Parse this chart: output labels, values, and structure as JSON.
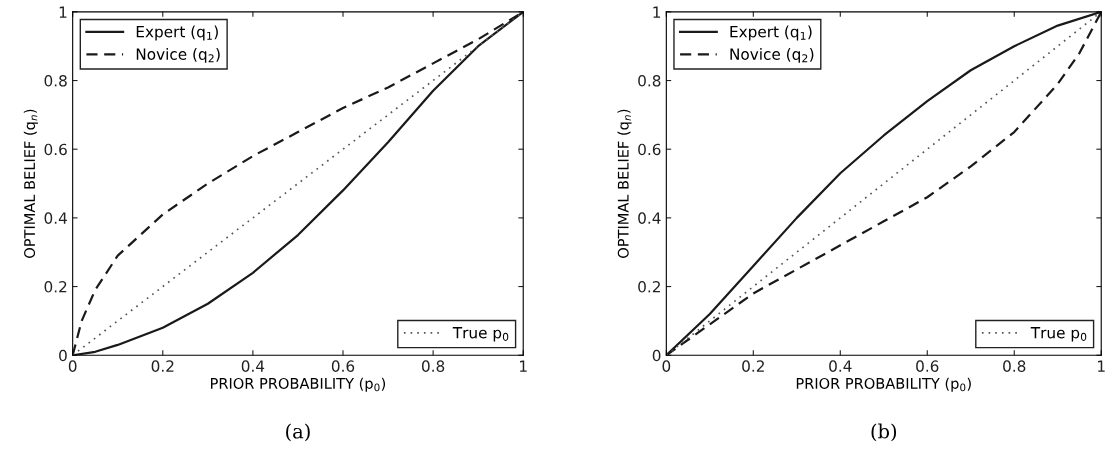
{
  "chart_data": [
    {
      "type": "line",
      "xlabel": "PRIOR PROBABILITY (p$_{0}$)",
      "ylabel": "OPTIMAL BELIEF (q$_{n}$)",
      "annotations": [
        "(a)"
      ],
      "xlim": [
        0,
        1
      ],
      "ylim": [
        0,
        1
      ],
      "xticks": [
        0,
        0.2,
        0.4,
        0.6,
        0.8,
        1
      ],
      "yticks": [
        0,
        0.2,
        0.4,
        0.6,
        0.8,
        1
      ],
      "grid": false,
      "legend": [
        "top left",
        "top left",
        "bottom right"
      ],
      "series": [
        {
          "name": "Expert (q$_{1}$)",
          "color": "#1a1a1a",
          "line_style": "solid",
          "x": [
            0,
            0.05,
            0.1,
            0.2,
            0.3,
            0.4,
            0.5,
            0.6,
            0.7,
            0.8,
            0.9,
            1
          ],
          "values": [
            0,
            0.01,
            0.03,
            0.08,
            0.15,
            0.24,
            0.35,
            0.48,
            0.62,
            0.77,
            0.9,
            1
          ]
        },
        {
          "name": "Novice (q$_{2}$)",
          "color": "#1a1a1a",
          "line_style": "dashed",
          "x": [
            0,
            0.02,
            0.05,
            0.1,
            0.2,
            0.3,
            0.4,
            0.5,
            0.6,
            0.7,
            0.8,
            0.9,
            1
          ],
          "values": [
            0,
            0.1,
            0.19,
            0.29,
            0.41,
            0.5,
            0.58,
            0.65,
            0.72,
            0.78,
            0.85,
            0.92,
            1
          ]
        },
        {
          "name": "True p$_{0}$",
          "color": "#555555",
          "line_style": "dotted",
          "x": [
            0,
            1
          ],
          "values": [
            0,
            1
          ]
        }
      ]
    },
    {
      "type": "line",
      "xlabel": "PRIOR PROBABILITY (p$_{0}$)",
      "ylabel": "OPTIMAL BELIEF (q$_{n}$)",
      "annotations": [
        "(b)"
      ],
      "xlim": [
        0,
        1
      ],
      "ylim": [
        0,
        1
      ],
      "xticks": [
        0,
        0.2,
        0.4,
        0.6,
        0.8,
        1
      ],
      "yticks": [
        0,
        0.2,
        0.4,
        0.6,
        0.8,
        1
      ],
      "grid": false,
      "legend": [
        "top left",
        "top left",
        "bottom right"
      ],
      "series": [
        {
          "name": "Expert (q$_{1}$)",
          "color": "#1a1a1a",
          "line_style": "solid",
          "x": [
            0,
            0.1,
            0.2,
            0.3,
            0.4,
            0.5,
            0.6,
            0.7,
            0.8,
            0.9,
            1
          ],
          "values": [
            0,
            0.12,
            0.26,
            0.4,
            0.53,
            0.64,
            0.74,
            0.83,
            0.9,
            0.96,
            1
          ]
        },
        {
          "name": "Novice (q$_{2}$)",
          "color": "#1a1a1a",
          "line_style": "dashed",
          "x": [
            0,
            0.1,
            0.2,
            0.3,
            0.4,
            0.5,
            0.6,
            0.7,
            0.8,
            0.9,
            0.95,
            1
          ],
          "values": [
            0,
            0.09,
            0.18,
            0.25,
            0.32,
            0.39,
            0.46,
            0.55,
            0.65,
            0.79,
            0.88,
            1
          ]
        },
        {
          "name": "True p$_{0}$",
          "color": "#555555",
          "line_style": "dotted",
          "x": [
            0,
            1
          ],
          "values": [
            0,
            1
          ]
        }
      ]
    }
  ]
}
